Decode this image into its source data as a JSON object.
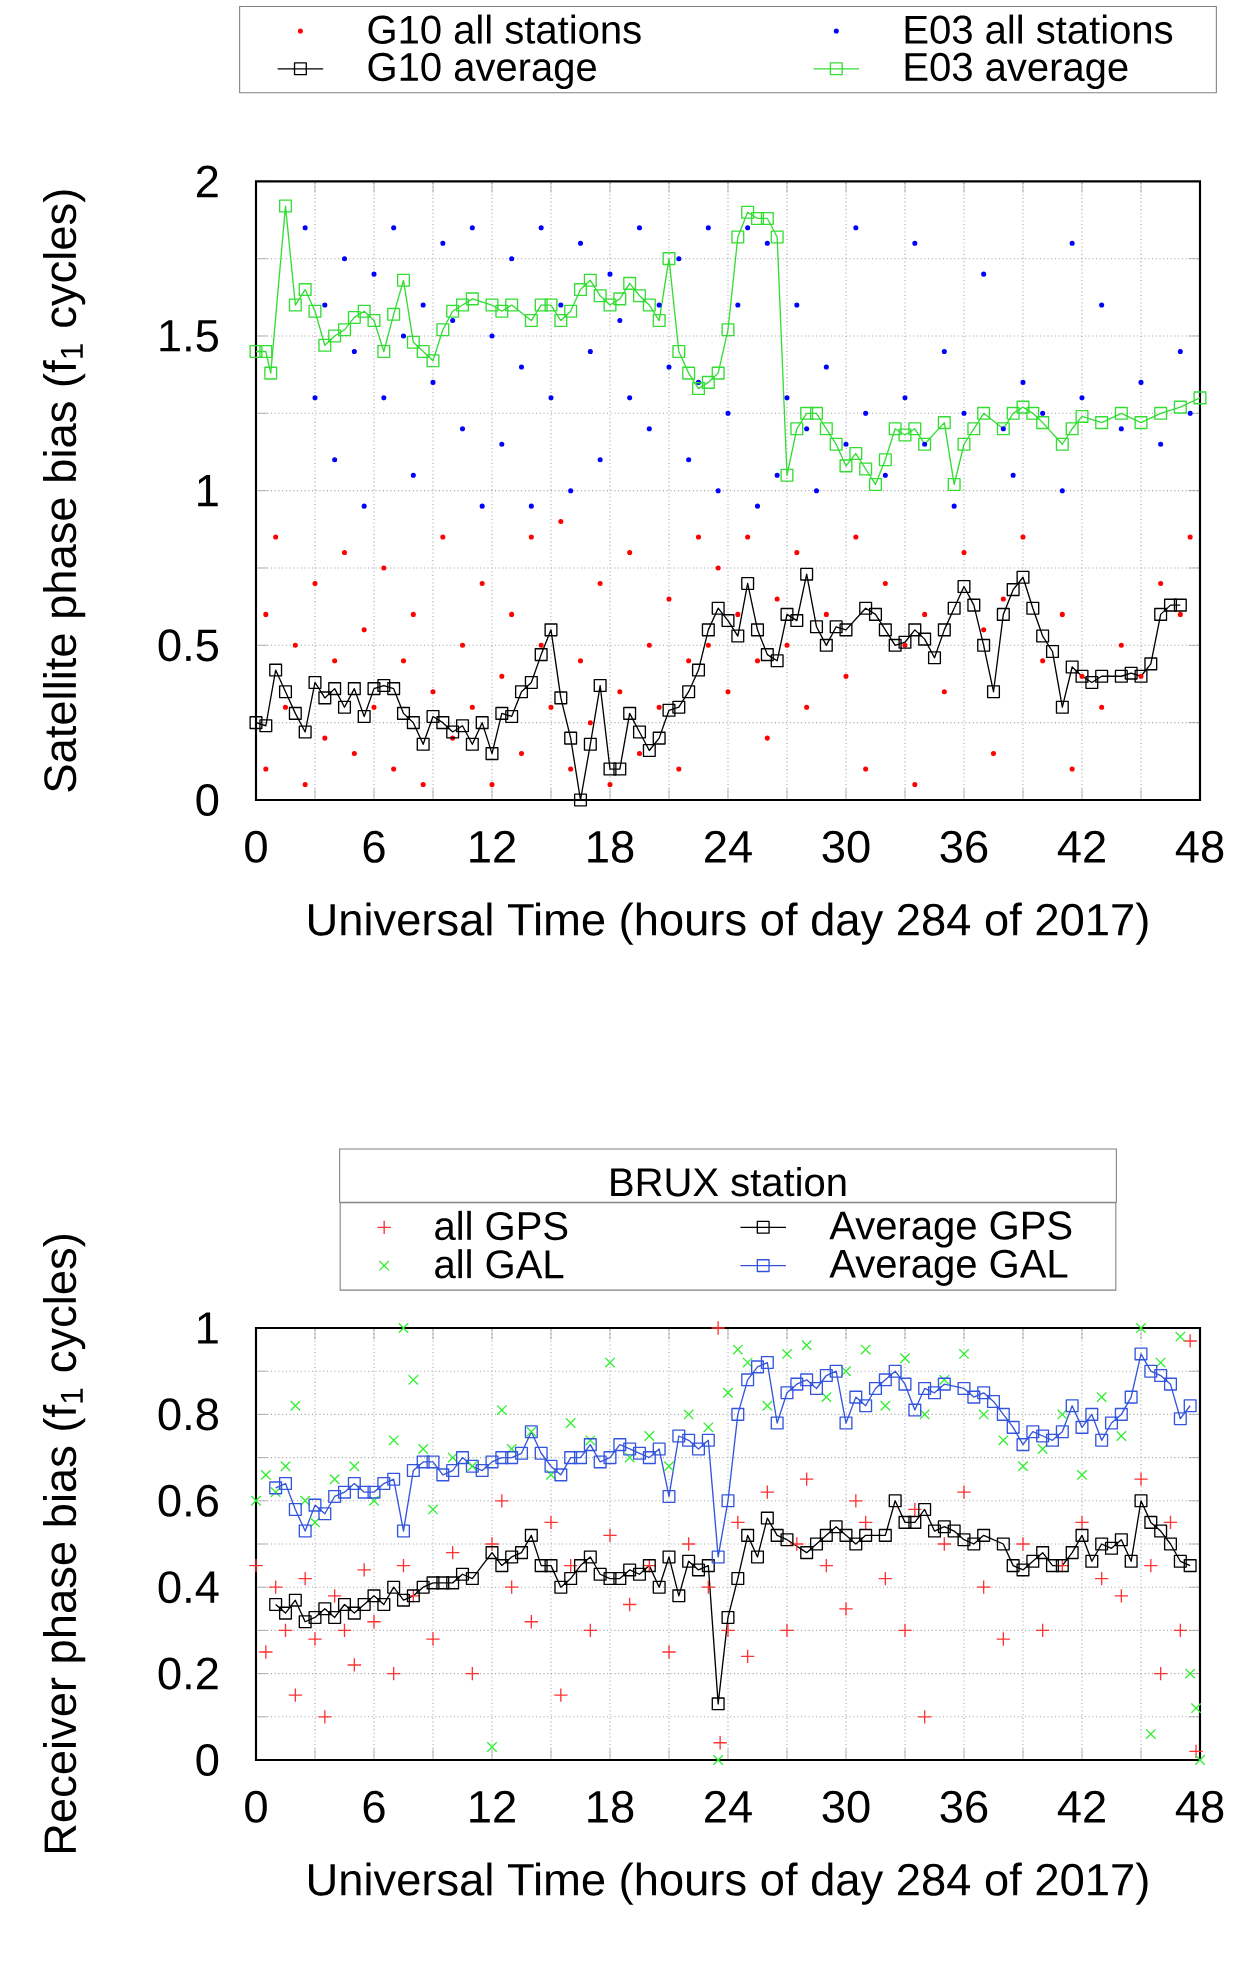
{
  "chart_data": [
    {
      "type": "scatter",
      "xlabel": "Universal Time (hours of day 284 of 2017)",
      "ylabel": "Satellite phase bias (f$_{1}$ cycles)",
      "xlim": [
        0,
        48
      ],
      "ylim": [
        0,
        2
      ],
      "xticks": [
        0,
        {
          "value": 3,
          "label": null
        },
        6,
        {
          "value": 9,
          "label": null
        },
        12,
        {
          "value": 15,
          "label": null
        },
        18,
        {
          "value": 21,
          "label": null
        },
        24,
        {
          "value": 27,
          "label": null
        },
        30,
        {
          "value": 33,
          "label": null
        },
        36,
        {
          "value": 39,
          "label": null
        },
        42,
        {
          "value": 45,
          "label": null
        },
        48
      ],
      "yticks": [
        0,
        {
          "value": 0.25,
          "label": null
        },
        0.5,
        {
          "value": 0.75,
          "label": null
        },
        1,
        {
          "value": 1.25,
          "label": null
        },
        1.5,
        {
          "value": 1.75,
          "label": null
        },
        2
      ],
      "grid": true,
      "legend": "top",
      "series": [
        {
          "name": "G10 all stations",
          "marker": "circle",
          "color": "#ff0000",
          "x": [
            0.5,
            0.5,
            1,
            1.5,
            2,
            2.5,
            3,
            3.5,
            4,
            4.5,
            5,
            5.5,
            6,
            6.5,
            7,
            7.5,
            8,
            8.5,
            9,
            9.5,
            10,
            10.5,
            11,
            11.5,
            12,
            12.5,
            13,
            13.5,
            14,
            14.5,
            15,
            15.5,
            16,
            16.5,
            17,
            17.5,
            18,
            18.5,
            19,
            19.5,
            20,
            20.5,
            21,
            21.5,
            22,
            22.5,
            23,
            23.5,
            24,
            24.5,
            25,
            25.5,
            26,
            26.5,
            27,
            27.5,
            28,
            29,
            30,
            30.5,
            31,
            32,
            33,
            33.5,
            34,
            35,
            36,
            37,
            37.5,
            38,
            39,
            40,
            41,
            41.5,
            42,
            43,
            44,
            45,
            46,
            47,
            47.5
          ],
          "values": [
            0.1,
            0.6,
            0.85,
            0.3,
            0.5,
            0.05,
            0.7,
            0.2,
            0.45,
            0.8,
            0.15,
            0.55,
            0.3,
            0.75,
            0.1,
            0.45,
            0.6,
            0.05,
            0.35,
            0.85,
            0.2,
            0.5,
            0.3,
            0.7,
            0.05,
            0.4,
            0.6,
            0.15,
            0.85,
            0.5,
            0.3,
            0.9,
            0.1,
            0.45,
            0.25,
            0.7,
            0.05,
            0.35,
            0.8,
            0.15,
            0.5,
            0.3,
            0.65,
            0.1,
            0.45,
            0.85,
            0.5,
            0.75,
            0.35,
            0.6,
            0.85,
            0.45,
            0.2,
            0.65,
            0.5,
            0.8,
            0.3,
            0.6,
            0.4,
            0.85,
            0.1,
            0.7,
            0.5,
            0.05,
            0.6,
            0.35,
            0.8,
            0.55,
            0.15,
            0.65,
            0.85,
            0.45,
            0.6,
            0.1,
            0.4,
            0.3,
            0.5,
            0.4,
            0.7,
            0.6,
            0.85
          ]
        },
        {
          "name": "E03 all stations",
          "marker": "circle",
          "color": "#0000ff",
          "x": [
            2.5,
            3,
            3.5,
            4,
            4.5,
            5,
            5.5,
            6,
            6.5,
            7,
            7.5,
            8,
            8.5,
            9,
            9.5,
            10,
            10.5,
            11,
            11.5,
            12,
            12.5,
            13,
            13.5,
            14,
            14.5,
            15,
            15.5,
            16,
            16.5,
            17,
            17.5,
            18,
            18.5,
            19,
            19.5,
            20,
            20.5,
            21,
            21.5,
            22,
            22.5,
            23,
            23.5,
            24,
            24.5,
            25,
            25.5,
            26,
            26.5,
            27,
            27.5,
            28,
            28.5,
            29,
            30,
            30.5,
            31,
            32,
            33,
            33.5,
            34,
            35,
            35.5,
            36,
            37,
            38,
            38.5,
            39,
            40,
            41,
            41.5,
            42,
            43,
            44,
            45,
            46,
            47,
            47.5
          ],
          "values": [
            1.85,
            1.3,
            1.6,
            1.1,
            1.75,
            1.45,
            0.95,
            1.7,
            1.3,
            1.85,
            1.5,
            1.05,
            1.6,
            1.35,
            1.8,
            1.55,
            1.2,
            1.85,
            0.95,
            1.5,
            1.15,
            1.75,
            1.4,
            0.95,
            1.85,
            1.3,
            1.6,
            1.0,
            1.8,
            1.45,
            1.1,
            1.7,
            1.55,
            1.3,
            1.85,
            1.2,
            1.6,
            1.4,
            1.75,
            1.1,
            1.35,
            1.85,
            1.0,
            1.25,
            1.6,
            1.85,
            0.95,
            1.8,
            1.05,
            1.3,
            1.6,
            1.2,
            1.0,
            1.4,
            1.15,
            1.85,
            1.25,
            1.05,
            1.3,
            1.8,
            1.15,
            1.45,
            0.95,
            1.25,
            1.7,
            1.2,
            1.05,
            1.35,
            1.25,
            1.0,
            1.8,
            1.3,
            1.6,
            1.2,
            1.35,
            1.15,
            1.45,
            1.25
          ]
        },
        {
          "name": "G10 average",
          "type": "line",
          "marker": "square",
          "color": "#000000",
          "x": [
            0,
            0.5,
            1,
            1.5,
            2,
            2.5,
            3,
            3.5,
            4,
            4.5,
            5,
            5.5,
            6,
            6.5,
            7,
            7.5,
            8,
            8.5,
            9,
            9.5,
            10,
            10.5,
            11,
            11.5,
            12,
            12.5,
            13,
            13.5,
            14,
            14.5,
            15,
            15.5,
            16,
            16.5,
            17,
            17.5,
            18,
            18.5,
            19,
            19.5,
            20,
            20.5,
            21,
            21.5,
            22,
            22.5,
            23,
            23.5,
            24,
            24.5,
            25,
            25.5,
            26,
            26.5,
            27,
            27.5,
            28,
            28.5,
            29,
            29.5,
            30,
            31,
            31.5,
            32,
            32.5,
            33,
            33.5,
            34,
            34.5,
            35,
            35.5,
            36,
            36.5,
            37,
            37.5,
            38,
            38.5,
            39,
            39.5,
            40,
            40.5,
            41,
            41.5,
            42,
            42.5,
            43,
            44,
            44.5,
            45,
            45.5,
            46,
            46.5,
            47
          ],
          "values": [
            0.25,
            0.24,
            0.42,
            0.35,
            0.28,
            0.22,
            0.38,
            0.33,
            0.36,
            0.3,
            0.36,
            0.27,
            0.36,
            0.37,
            0.36,
            0.28,
            0.25,
            0.18,
            0.27,
            0.25,
            0.22,
            0.24,
            0.18,
            0.25,
            0.15,
            0.28,
            0.27,
            0.35,
            0.38,
            0.47,
            0.55,
            0.33,
            0.2,
            0.0,
            0.18,
            0.37,
            0.1,
            0.1,
            0.28,
            0.22,
            0.16,
            0.2,
            0.29,
            0.3,
            0.35,
            0.42,
            0.55,
            0.62,
            0.58,
            0.53,
            0.7,
            0.55,
            0.47,
            0.45,
            0.6,
            0.58,
            0.73,
            0.56,
            0.5,
            0.56,
            0.55,
            0.62,
            0.6,
            0.55,
            0.5,
            0.51,
            0.55,
            0.52,
            0.46,
            0.55,
            0.62,
            0.69,
            0.63,
            0.5,
            0.35,
            0.6,
            0.68,
            0.72,
            0.62,
            0.53,
            0.48,
            0.3,
            0.43,
            0.4,
            0.38,
            0.4,
            0.4,
            0.41,
            0.4,
            0.44,
            0.6,
            0.63,
            0.63
          ]
        },
        {
          "name": "E03 average",
          "type": "line",
          "marker": "square",
          "color": "#33dd33",
          "x": [
            0,
            0.5,
            0.75,
            1.5,
            2,
            2.5,
            3,
            3.5,
            4,
            4.5,
            5,
            5.5,
            6,
            6.5,
            7,
            7.5,
            8,
            8.5,
            9,
            9.5,
            10,
            10.5,
            11,
            12,
            12.5,
            13,
            14,
            14.5,
            15,
            15.5,
            16,
            16.5,
            17,
            17.5,
            18,
            18.5,
            19,
            19.5,
            20,
            20.5,
            21,
            21.5,
            22,
            22.5,
            23,
            23.5,
            24,
            24.5,
            25,
            25.5,
            26,
            26.5,
            27,
            27.5,
            28,
            28.5,
            29,
            29.5,
            30,
            30.5,
            31,
            31.5,
            32,
            32.5,
            33,
            33.5,
            34,
            35,
            35.5,
            36,
            36.5,
            37,
            38,
            38.5,
            39,
            39.5,
            40,
            41,
            41.5,
            42,
            43,
            44,
            45,
            46,
            47,
            48
          ],
          "values": [
            1.45,
            1.45,
            1.38,
            1.92,
            1.6,
            1.65,
            1.58,
            1.47,
            1.5,
            1.52,
            1.56,
            1.58,
            1.55,
            1.45,
            1.57,
            1.68,
            1.48,
            1.45,
            1.42,
            1.52,
            1.58,
            1.6,
            1.62,
            1.6,
            1.58,
            1.6,
            1.55,
            1.6,
            1.6,
            1.55,
            1.58,
            1.65,
            1.68,
            1.63,
            1.6,
            1.62,
            1.67,
            1.63,
            1.6,
            1.55,
            1.75,
            1.45,
            1.38,
            1.33,
            1.35,
            1.38,
            1.52,
            1.82,
            1.9,
            1.88,
            1.88,
            1.82,
            1.05,
            1.2,
            1.25,
            1.25,
            1.2,
            1.15,
            1.08,
            1.12,
            1.07,
            1.02,
            1.1,
            1.2,
            1.18,
            1.2,
            1.15,
            1.22,
            1.02,
            1.15,
            1.2,
            1.25,
            1.2,
            1.25,
            1.27,
            1.25,
            1.22,
            1.15,
            1.2,
            1.24,
            1.22,
            1.25,
            1.22,
            1.25,
            1.27,
            1.3
          ]
        }
      ]
    },
    {
      "type": "scatter",
      "xlabel": "Universal Time (hours of day 284 of 2017)",
      "ylabel": "Receiver phase bias (f$_{1}$ cycles)",
      "legend_title": "BRUX station",
      "xlim": [
        0,
        48
      ],
      "ylim": [
        0,
        1
      ],
      "xticks": [
        0,
        {
          "value": 3,
          "label": null
        },
        6,
        {
          "value": 9,
          "label": null
        },
        12,
        {
          "value": 15,
          "label": null
        },
        18,
        {
          "value": 21,
          "label": null
        },
        24,
        {
          "value": 27,
          "label": null
        },
        30,
        {
          "value": 33,
          "label": null
        },
        36,
        {
          "value": 39,
          "label": null
        },
        42,
        {
          "value": 45,
          "label": null
        },
        48
      ],
      "yticks": [
        0,
        {
          "value": 0.1,
          "label": null
        },
        0.2,
        {
          "value": 0.3,
          "label": null
        },
        0.4,
        {
          "value": 0.5,
          "label": null
        },
        0.6,
        {
          "value": 0.7,
          "label": null
        },
        0.8,
        {
          "value": 0.9,
          "label": null
        },
        1
      ],
      "grid": true,
      "legend": "top",
      "series": [
        {
          "name": "all GPS",
          "marker": "plus",
          "color": "#ff3333",
          "x": [
            0,
            0.5,
            1,
            1.5,
            2,
            2.5,
            3,
            3.5,
            4,
            4.5,
            5,
            5.5,
            6,
            7,
            7.5,
            8,
            9,
            10,
            11,
            12,
            12.5,
            13,
            14,
            15,
            15.5,
            16,
            17,
            18,
            19,
            20,
            21,
            22,
            23,
            23.5,
            23.6,
            24,
            24.5,
            25,
            26,
            27,
            27.5,
            28,
            29,
            30,
            30.5,
            31,
            32,
            33,
            33.5,
            34,
            35,
            36,
            37,
            38,
            39,
            40,
            41,
            42,
            43,
            44,
            45,
            45.5,
            46,
            46.5,
            47,
            47.5,
            47.8
          ],
          "values": [
            0.45,
            0.25,
            0.4,
            0.3,
            0.15,
            0.42,
            0.28,
            0.1,
            0.38,
            0.3,
            0.22,
            0.44,
            0.32,
            0.2,
            0.45,
            0.38,
            0.28,
            0.48,
            0.2,
            0.5,
            0.6,
            0.4,
            0.32,
            0.55,
            0.15,
            0.45,
            0.3,
            0.52,
            0.36,
            0.45,
            0.25,
            0.5,
            0.4,
            1.0,
            0.04,
            0.3,
            0.55,
            0.24,
            0.62,
            0.3,
            0.5,
            0.65,
            0.45,
            0.35,
            0.6,
            0.55,
            0.42,
            0.3,
            0.58,
            0.1,
            0.5,
            0.62,
            0.4,
            0.28,
            0.5,
            0.3,
            0.45,
            0.55,
            0.42,
            0.38,
            0.65,
            0.45,
            0.2,
            0.55,
            0.3,
            0.97,
            0.02
          ]
        },
        {
          "name": "Average GPS",
          "type": "line",
          "marker": "square",
          "color": "#000000",
          "x": [
            1,
            1.5,
            2,
            2.5,
            3,
            3.5,
            4,
            4.5,
            5,
            5.5,
            6,
            6.5,
            7,
            7.5,
            8,
            8.5,
            9,
            9.5,
            10,
            10.5,
            11,
            12,
            12.5,
            13,
            13.5,
            14,
            14.5,
            15,
            15.5,
            16,
            16.5,
            17,
            17.5,
            18,
            18.5,
            19,
            19.5,
            20,
            20.5,
            21,
            21.5,
            22,
            22.5,
            23,
            23.5,
            24,
            24.5,
            25,
            25.5,
            26,
            26.5,
            27,
            28,
            28.5,
            29,
            29.5,
            30,
            30.5,
            31,
            32,
            32.5,
            33,
            33.5,
            34,
            34.5,
            35,
            35.5,
            36,
            36.5,
            37,
            38,
            38.5,
            39,
            39.5,
            40,
            40.5,
            41,
            41.5,
            42,
            42.5,
            43,
            43.5,
            44,
            44.5,
            45,
            45.5,
            46,
            46.5,
            47,
            47.5
          ],
          "values": [
            0.36,
            0.34,
            0.37,
            0.32,
            0.33,
            0.35,
            0.33,
            0.36,
            0.34,
            0.36,
            0.38,
            0.36,
            0.4,
            0.37,
            0.38,
            0.4,
            0.41,
            0.41,
            0.41,
            0.43,
            0.42,
            0.48,
            0.45,
            0.47,
            0.48,
            0.52,
            0.45,
            0.45,
            0.4,
            0.42,
            0.45,
            0.47,
            0.43,
            0.42,
            0.42,
            0.44,
            0.43,
            0.45,
            0.4,
            0.47,
            0.38,
            0.46,
            0.44,
            0.45,
            0.13,
            0.33,
            0.42,
            0.52,
            0.47,
            0.56,
            0.52,
            0.51,
            0.48,
            0.5,
            0.52,
            0.54,
            0.52,
            0.5,
            0.52,
            0.52,
            0.6,
            0.55,
            0.55,
            0.58,
            0.53,
            0.54,
            0.53,
            0.51,
            0.5,
            0.52,
            0.5,
            0.45,
            0.44,
            0.46,
            0.48,
            0.45,
            0.45,
            0.48,
            0.52,
            0.46,
            0.5,
            0.49,
            0.51,
            0.46,
            0.6,
            0.55,
            0.53,
            0.5,
            0.46,
            0.45
          ]
        },
        {
          "name": "all GAL",
          "marker": "cross",
          "color": "#33ee33",
          "x": [
            0,
            0.5,
            1,
            1.5,
            2,
            2.5,
            3,
            4,
            5,
            6,
            7,
            7.5,
            8,
            8.5,
            9,
            10,
            11,
            12,
            12.5,
            13,
            14,
            15,
            16,
            17,
            18,
            19,
            20,
            21,
            22,
            23,
            23.5,
            24,
            24.5,
            25,
            26,
            27,
            28,
            29,
            30,
            31,
            32,
            33,
            34,
            35,
            36,
            37,
            38,
            39,
            40,
            41,
            42,
            43,
            44,
            45,
            45.5,
            46,
            47,
            47.5,
            47.8,
            48
          ],
          "values": [
            0.6,
            0.66,
            0.62,
            0.68,
            0.82,
            0.6,
            0.55,
            0.65,
            0.68,
            0.6,
            0.74,
            1.0,
            0.88,
            0.72,
            0.58,
            0.7,
            0.68,
            0.03,
            0.81,
            0.72,
            0.76,
            0.66,
            0.78,
            0.74,
            0.92,
            0.7,
            0.75,
            0.68,
            0.8,
            0.77,
            0.0,
            0.85,
            0.95,
            0.92,
            0.82,
            0.94,
            0.96,
            0.84,
            0.9,
            0.95,
            0.82,
            0.93,
            0.8,
            0.88,
            0.94,
            0.8,
            0.74,
            0.68,
            0.72,
            0.8,
            0.66,
            0.84,
            0.75,
            1.0,
            0.06,
            0.92,
            0.98,
            0.2,
            0.12,
            0.0
          ]
        },
        {
          "name": "Average GAL",
          "type": "line",
          "marker": "square",
          "color": "#3355dd",
          "x": [
            1,
            1.5,
            2,
            2.5,
            3,
            3.5,
            4,
            4.5,
            5,
            5.5,
            6,
            6.5,
            7,
            7.5,
            8,
            8.5,
            9,
            9.5,
            10,
            10.5,
            11,
            11.5,
            12,
            12.5,
            13,
            13.5,
            14,
            14.5,
            15,
            15.5,
            16,
            16.5,
            17,
            17.5,
            18,
            18.5,
            19,
            19.5,
            20,
            20.5,
            21,
            21.5,
            22,
            22.5,
            23,
            23.5,
            24,
            24.5,
            25,
            25.5,
            26,
            26.5,
            27,
            27.5,
            28,
            28.5,
            29,
            29.5,
            30,
            30.5,
            31,
            31.5,
            32,
            32.5,
            33,
            33.5,
            34,
            34.5,
            35,
            36,
            36.5,
            37,
            37.5,
            38,
            38.5,
            39,
            39.5,
            40,
            40.5,
            41,
            41.5,
            42,
            42.5,
            43,
            43.5,
            44,
            44.5,
            45,
            45.5,
            46,
            46.5,
            47,
            47.5
          ],
          "values": [
            0.63,
            0.64,
            0.58,
            0.53,
            0.59,
            0.57,
            0.61,
            0.62,
            0.64,
            0.62,
            0.62,
            0.64,
            0.65,
            0.53,
            0.67,
            0.69,
            0.69,
            0.66,
            0.67,
            0.7,
            0.68,
            0.67,
            0.69,
            0.7,
            0.7,
            0.71,
            0.76,
            0.71,
            0.68,
            0.66,
            0.7,
            0.7,
            0.73,
            0.69,
            0.7,
            0.73,
            0.72,
            0.71,
            0.7,
            0.72,
            0.61,
            0.75,
            0.74,
            0.72,
            0.74,
            0.47,
            0.6,
            0.8,
            0.88,
            0.91,
            0.92,
            0.78,
            0.85,
            0.87,
            0.88,
            0.86,
            0.89,
            0.9,
            0.78,
            0.84,
            0.82,
            0.86,
            0.88,
            0.9,
            0.87,
            0.81,
            0.86,
            0.85,
            0.87,
            0.86,
            0.84,
            0.85,
            0.83,
            0.8,
            0.77,
            0.73,
            0.76,
            0.75,
            0.74,
            0.76,
            0.82,
            0.77,
            0.8,
            0.74,
            0.78,
            0.8,
            0.84,
            0.94,
            0.9,
            0.89,
            0.87,
            0.79,
            0.82
          ]
        }
      ]
    }
  ]
}
